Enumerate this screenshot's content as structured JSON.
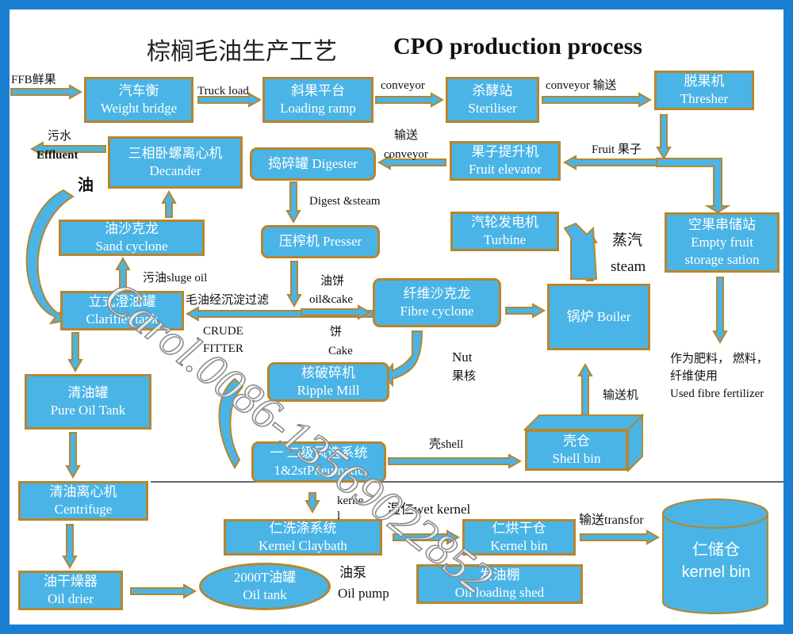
{
  "title": {
    "cn": "棕榈毛油生产工艺",
    "en": "CPO production process"
  },
  "boxes": {
    "weight_bridge": {
      "cn": "汽车衡",
      "en": "Weight bridge"
    },
    "loading_ramp": {
      "cn": "斜果平台",
      "en": "Loading ramp"
    },
    "steriliser": {
      "cn": "杀酵站",
      "en": "Steriliser"
    },
    "thresher": {
      "cn": "脱果机",
      "en": "Thresher"
    },
    "decanter": {
      "cn": "三相卧螺离心机",
      "en": "Decander"
    },
    "digester": {
      "text": "捣碎罐 Digester"
    },
    "fruit_elevator": {
      "cn": "果子提升机",
      "en": "Fruit elevator"
    },
    "sand_cyclone": {
      "cn": "油沙克龙",
      "en": "Sand cyclone"
    },
    "presser": {
      "text": "压榨机 Presser"
    },
    "turbine": {
      "cn": "汽轮发电机",
      "en": "Turbine"
    },
    "empty_fruit": {
      "cn": "空果串储站",
      "en": "Empty fruit",
      "en2": "storage sation"
    },
    "clarifier": {
      "cn": "立式澄油罐",
      "en": "Clarifier tank"
    },
    "fibre_cyclone": {
      "cn": "纤维沙克龙",
      "en": "Fibre cyclone"
    },
    "boiler": {
      "text": "锅炉 Boiler"
    },
    "ripple_mill": {
      "cn": "核破碎机",
      "en": "Ripple Mill"
    },
    "pure_oil_tank": {
      "cn": "清油罐",
      "en": "Pure Oil Tank"
    },
    "pneumatic": {
      "cn": "一 二级风选系统",
      "en": "1&2stPneumatic"
    },
    "shell_bin": {
      "cn": "壳仓",
      "en": "Shell bin"
    },
    "centrifuge": {
      "cn": "清油离心机",
      "en": "Centrifuge"
    },
    "kernel_claybath": {
      "cn": "仁洗涤系统",
      "en": "Kernel Claybath"
    },
    "kernel_bin_small": {
      "cn": "仁烘干仓",
      "en": "Kernel bin"
    },
    "kernel_bin_store": {
      "cn": "仁储仓",
      "en": "kernel bin"
    },
    "oil_drier": {
      "cn": "油干燥器",
      "en": "Oil drier"
    },
    "oil_tank": {
      "cn": "2000T油罐",
      "en": "Oil tank"
    },
    "oil_loading_shed": {
      "cn": "发油棚",
      "en": "Oil loading shed"
    }
  },
  "labels": {
    "ffb": "FFB鲜果",
    "truck_load": "Truck load",
    "conveyor1": "conveyor",
    "conveyor2": "conveyor 输送",
    "fruit": "Fruit 果子",
    "conveyor3_cn": "输送",
    "conveyor3_en": "conveyor",
    "effluent_cn": "污水",
    "effluent_en": "Effluent",
    "oil": "油",
    "digest_steam": "Digest &steam",
    "sludge_oil": "污油sluge oil",
    "crude_cn": "毛油经沉淀过滤",
    "crude_en1": "CRUDE",
    "crude_en2": "FITTER",
    "oilcake_cn": "油饼",
    "oilcake_en": "oil&cake",
    "cake_cn": "饼",
    "cake_en": "Cake",
    "nut_en": "Nut",
    "nut_cn": "果核",
    "steam_cn": "蒸汽",
    "steam_en": "steam",
    "conveyor_machine": "输送机",
    "fert1": "作为肥料， 燃料，",
    "fert2": "纤维使用",
    "fert3": "Used fibre fertilizer",
    "shell": "壳shell",
    "kernel1": "kerne",
    "kernel2": "l",
    "wet_kernel": "湿仁wet kernel",
    "transfer": "输送transfor",
    "oil_pump_cn": "油泵",
    "oil_pump_en": "Oil pump"
  },
  "watermark": "Carol.0086-13569022852",
  "colors": {
    "box": "#4ab4e6",
    "border": "#b5862e",
    "frame": "#1a7fd0"
  }
}
